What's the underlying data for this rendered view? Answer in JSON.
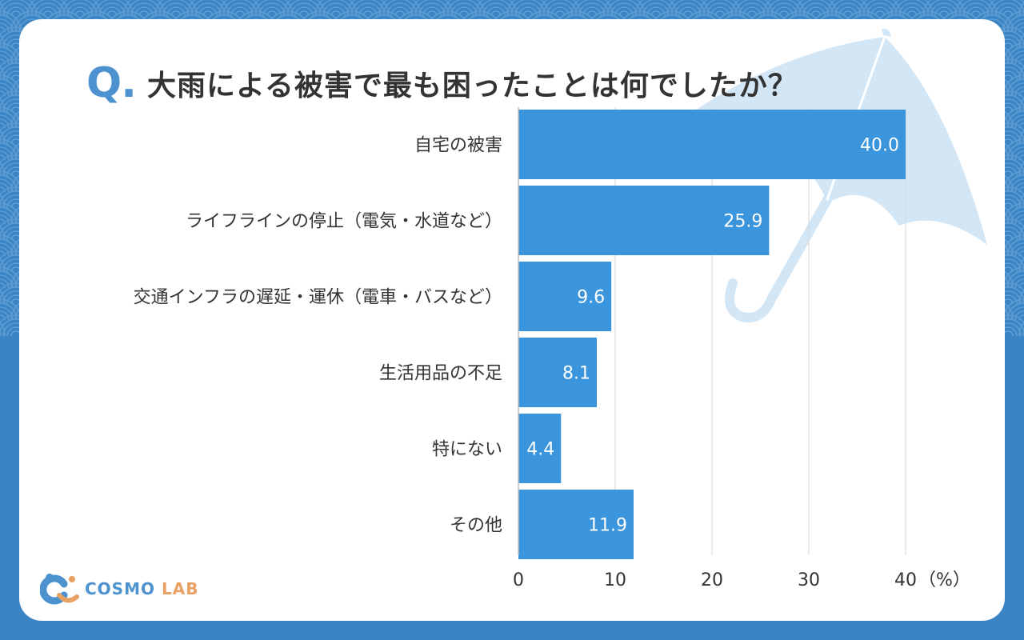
{
  "question_mark": "Q.",
  "title": "大雨による被害で最も困ったことは何でしたか？",
  "logo": {
    "word1": "COSMO",
    "word2": "LAB"
  },
  "colors": {
    "bar": "#3a95dd",
    "accent": "#4b92cf",
    "background": "#3b84c4",
    "umbrella": "#d3e6f6"
  },
  "chart_data": {
    "type": "bar",
    "orientation": "horizontal",
    "categories": [
      "自宅の被害",
      "ライフラインの停止（電気・水道など）",
      "交通インフラの遅延・運休（電車・バスなど）",
      "生活用品の不足",
      "特にない",
      "その他"
    ],
    "values": [
      40.0,
      25.9,
      9.6,
      8.1,
      4.4,
      11.9
    ],
    "value_labels": [
      "40.0",
      "25.9",
      "9.6",
      "8.1",
      "4.4",
      "11.9"
    ],
    "x_ticks": [
      0,
      10,
      20,
      30,
      40
    ],
    "x_unit": "（%）",
    "xlim": [
      0,
      40
    ],
    "grid": true
  }
}
